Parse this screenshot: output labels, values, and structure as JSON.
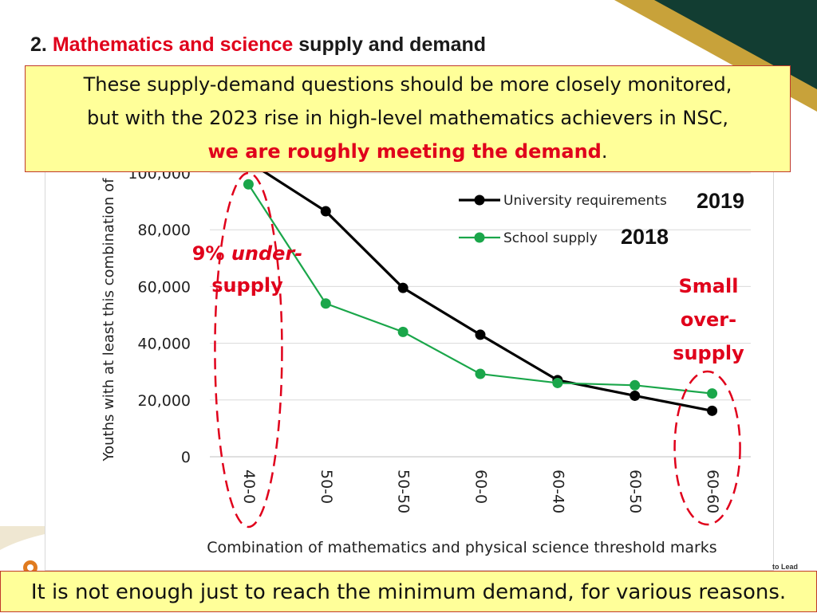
{
  "slide": {
    "title_number": "2.",
    "title_highlight": "Mathematics and science",
    "title_rest": "supply and demand",
    "top_callout": {
      "line1": "These supply-demand questions should be more closely monitored,",
      "line2": "but with the 2023 rise in high-level mathematics achievers in NSC,",
      "line3_highlight": "we are roughly meeting the demand",
      "line3_end": "."
    },
    "bottom_callout": "It is not enough just to reach the minimum demand, for various reasons.",
    "annotation_under": {
      "pct": "9%",
      "word1": "under-",
      "word2": "supply"
    },
    "annotation_over": [
      "Small",
      "over-",
      "supply"
    ],
    "year_requirements": "2019",
    "year_supply": "2018",
    "footer_tag": "to Lead",
    "colors": {
      "accent_red": "#e0001b",
      "callout_fill": "#ffff99",
      "corner_green": "#123d32",
      "corner_gold": "#c8a23a"
    }
  },
  "chart_data": {
    "type": "line",
    "categories": [
      "40-0",
      "50-0",
      "50-50",
      "60-0",
      "60-40",
      "60-50",
      "60-60"
    ],
    "series": [
      {
        "name": "University requirements",
        "color": "#000000",
        "values": [
          104000,
          86500,
          59500,
          43000,
          27000,
          21500,
          16200
        ]
      },
      {
        "name": "School supply",
        "color": "#1aa64a",
        "values": [
          96000,
          54000,
          44000,
          29200,
          26000,
          25200,
          22300
        ]
      }
    ],
    "ylim": [
      0,
      100000
    ],
    "yticks": [
      0,
      20000,
      40000,
      60000,
      80000,
      100000
    ],
    "ytick_labels": [
      "0",
      "20,000",
      "40,000",
      "60,000",
      "80,000",
      "100,000"
    ],
    "xlabel": "Combination of mathematics and physical science threshold marks",
    "ylabel": "Youths with at least this combination of",
    "grid": true,
    "legend_position": "top-right"
  }
}
